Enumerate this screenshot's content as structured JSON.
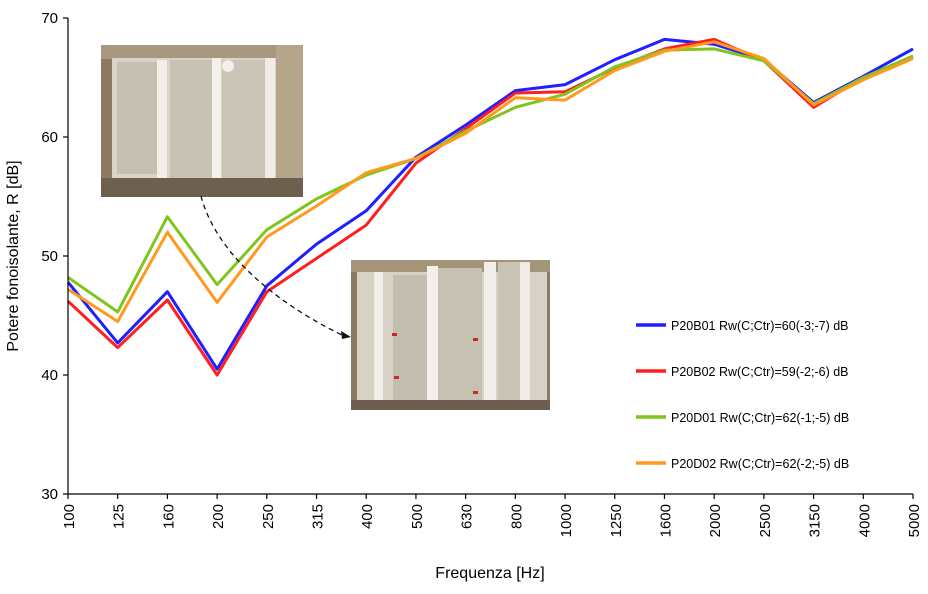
{
  "chart_data": {
    "type": "line",
    "xlabel": "Frequenza [Hz]",
    "ylabel": "Potere fonoisolante, R [dB]",
    "ylim": [
      30,
      70
    ],
    "yticks": [
      "30",
      "40",
      "50",
      "60",
      "70"
    ],
    "categories": [
      "100",
      "125",
      "160",
      "200",
      "250",
      "315",
      "400",
      "500",
      "630",
      "800",
      "1000",
      "1250",
      "1600",
      "2000",
      "2500",
      "3150",
      "4000",
      "5000"
    ],
    "grid": false,
    "legend_position": "right",
    "series": [
      {
        "name": "P20B01 Rw(C;Ctr)=60(-3;-7) dB",
        "color": "#1f1fff",
        "values": [
          47.8,
          42.7,
          47.0,
          40.5,
          47.5,
          51.0,
          53.8,
          58.3,
          61.0,
          63.9,
          64.4,
          66.5,
          68.2,
          67.8,
          66.5,
          62.9,
          65.1,
          67.4
        ]
      },
      {
        "name": "P20B02 Rw(C;Ctr)=59(-2;-6) dB",
        "color": "#ff1f1f",
        "values": [
          46.2,
          42.3,
          46.3,
          40.0,
          47.0,
          49.8,
          52.6,
          57.8,
          60.7,
          63.7,
          63.8,
          65.8,
          67.4,
          68.2,
          66.4,
          62.5,
          65.0,
          66.8
        ]
      },
      {
        "name": "P20D01 Rw(C;Ctr)=62(-1;-5) dB",
        "color": "#7fc41f",
        "values": [
          48.2,
          45.3,
          53.3,
          47.6,
          52.2,
          54.8,
          56.8,
          58.2,
          60.5,
          62.5,
          63.6,
          65.9,
          67.3,
          67.4,
          66.4,
          62.8,
          65.0,
          66.8
        ]
      },
      {
        "name": "P20D02 Rw(C;Ctr)=62(-2;-5) dB",
        "color": "#ff9a1f",
        "values": [
          47.2,
          44.5,
          52.0,
          46.1,
          51.6,
          54.2,
          57.0,
          58.2,
          60.3,
          63.3,
          63.1,
          65.6,
          67.2,
          68.0,
          66.6,
          62.7,
          64.8,
          66.6
        ]
      }
    ]
  }
}
